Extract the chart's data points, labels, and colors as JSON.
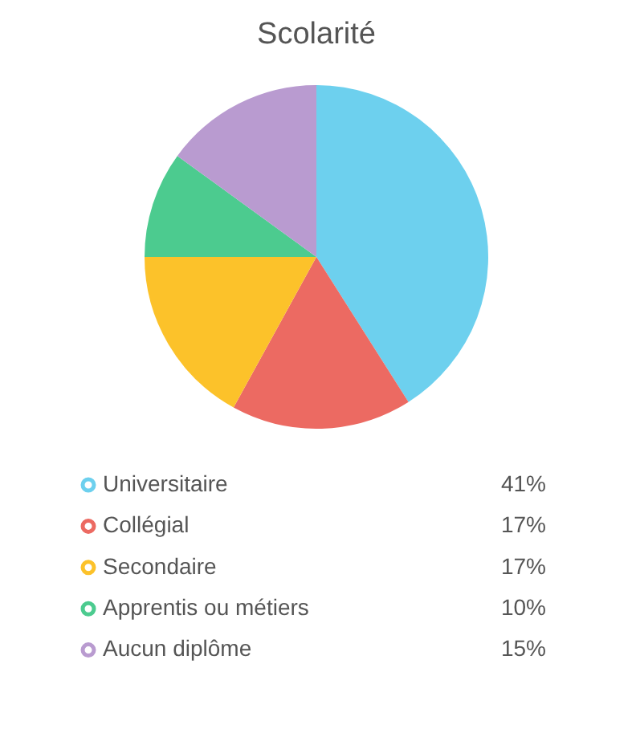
{
  "chart_data": {
    "type": "pie",
    "title": "Scolarité",
    "categories": [
      "Universitaire",
      "Collégial",
      "Secondaire",
      "Apprentis ou métiers",
      "Aucun diplôme"
    ],
    "values": [
      41,
      17,
      17,
      10,
      15
    ],
    "colors": [
      "#6dd0ee",
      "#ec6a62",
      "#fcc22a",
      "#4ccb8f",
      "#b99bd0"
    ],
    "value_labels": [
      "41%",
      "17%",
      "17%",
      "10%",
      "15%"
    ],
    "legend": "bottom"
  }
}
